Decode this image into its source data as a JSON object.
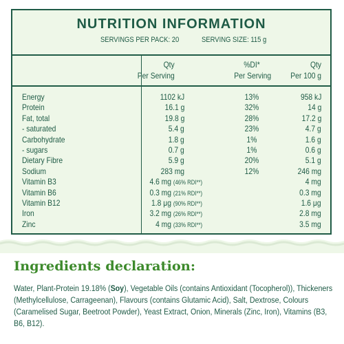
{
  "nutrition": {
    "title": "NUTRITION INFORMATION",
    "servings_per_pack": "SERVINGS PER PACK: 20",
    "serving_size": "SERVING SIZE: 115 g",
    "headers": {
      "per_serving_line1": "Qty",
      "per_serving_line2": "Per Serving",
      "di_line1": "%DI*",
      "di_line2": "Per Serving",
      "per100_line1": "Qty",
      "per100_line2": "Per 100 g"
    },
    "rows": [
      {
        "name": "Energy",
        "per_serving": "1102 kJ",
        "di": "13%",
        "per100": "958 kJ"
      },
      {
        "name": "Protein",
        "per_serving": "16.1 g",
        "di": "32%",
        "per100": "14 g"
      },
      {
        "name": "Fat, total",
        "per_serving": "19.8 g",
        "di": "28%",
        "per100": "17.2 g"
      },
      {
        "name": "- saturated",
        "per_serving": "5.4 g",
        "di": "23%",
        "per100": "4.7 g"
      },
      {
        "name": "Carbohydrate",
        "per_serving": "1.8 g",
        "di": "1%",
        "per100": "1.6 g"
      },
      {
        "name": "- sugars",
        "per_serving": "0.7 g",
        "di": "1%",
        "per100": "0.6 g"
      },
      {
        "name": "Dietary Fibre",
        "per_serving": "5.9 g",
        "di": "20%",
        "per100": "5.1 g"
      },
      {
        "name": "Sodium",
        "per_serving": "283 mg",
        "di": "12%",
        "per100": "246 mg"
      },
      {
        "name": "Vitamin B3",
        "per_serving": "4.6 mg",
        "rdi": "(46% RDI**)",
        "di": "",
        "per100": "4 mg"
      },
      {
        "name": "Vitamin B6",
        "per_serving": "0.3 mg",
        "rdi": "(21% RDI**)",
        "di": "",
        "per100": "0.3 mg"
      },
      {
        "name": "Vitamin B12",
        "per_serving": "1.8 μg",
        "rdi": "(90% RDI**)",
        "di": "",
        "per100": "1.6 μg"
      },
      {
        "name": "Iron",
        "per_serving": "3.2 mg",
        "rdi": "(26% RDI**)",
        "di": "",
        "per100": "2.8 mg"
      },
      {
        "name": "Zinc",
        "per_serving": "4 mg",
        "rdi": "(33% RDI**)",
        "di": "",
        "per100": "3.5 mg"
      }
    ]
  },
  "ingredients": {
    "title": "Ingredients declaration:",
    "text_before_bold": "Water, Plant-Protein 19.18% (",
    "bold": "Soy",
    "text_after_bold": "), Vegetable Oils (contains Antioxidant (Tocopherol)), Thickeners (Methylcellulose, Carrageenan), Flavours (contains Glutamic Acid), Salt, Dextrose, Colours (Caramelised Sugar, Beetroot Powder), Yeast Extract, Onion, Minerals (Zinc, Iron), Vitamins (B3, B6, B12)."
  },
  "colors": {
    "label_green": "#1f5b46",
    "panel_bg": "#eef7e8",
    "heading_green": "#3d8a2c"
  }
}
